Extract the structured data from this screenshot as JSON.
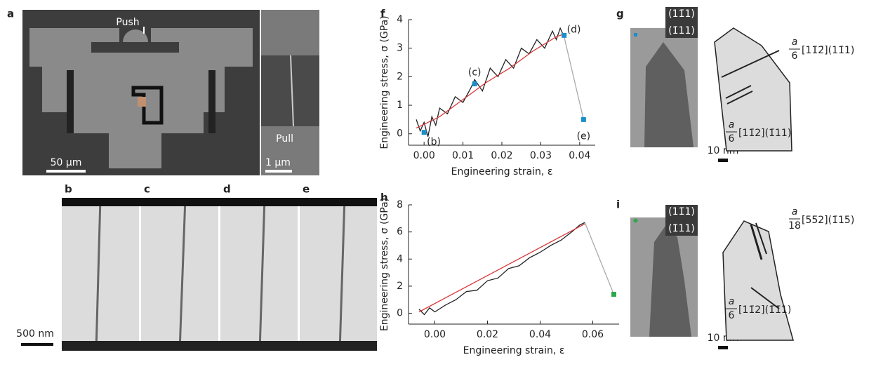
{
  "panel_labels": [
    "a",
    "b",
    "c",
    "d",
    "e",
    "f",
    "g",
    "h",
    "i"
  ],
  "image_texts": {
    "push": "Push",
    "pull": "Pull",
    "scale_a": "50 μm",
    "scale_a2": "1 μm",
    "scale_be": "500 nm",
    "scale_g": "10 nm",
    "scale_i": "10 nm"
  },
  "diffraction": {
    "g": [
      "(11̄1)",
      "(1̄11)"
    ],
    "i": [
      "(11̄1)",
      "(1̄11)"
    ]
  },
  "slip": {
    "g": [
      {
        "num": "a",
        "den": "6",
        "index": "[11̄2̄](11̄1)"
      },
      {
        "num": "a",
        "den": "6",
        "index": "[11̄2](1̄11)"
      }
    ],
    "i": [
      {
        "num": "a",
        "den": "18",
        "index": "[55̄2](1̄15)"
      },
      {
        "num": "a",
        "den": "6",
        "index": "[11̄2](1̄1̄1)"
      }
    ]
  },
  "chart_data": [
    {
      "type": "line",
      "x_label": "Engineering strain, ε",
      "y_label": "Engineering stress, σ (GPa)",
      "xlim": [
        -0.004,
        0.044
      ],
      "ylim": [
        -0.4,
        4
      ],
      "xticks": [
        {
          "value": 0,
          "label": "0.00"
        },
        {
          "value": 0.01,
          "label": "0.01"
        },
        {
          "value": 0.02,
          "label": "0.02"
        },
        {
          "value": 0.03,
          "label": "0.03"
        },
        {
          "value": 0.04,
          "label": "0.04"
        }
      ],
      "yticks": [
        0,
        1,
        2,
        3,
        4
      ],
      "series": [
        {
          "style": "line",
          "color": "#222222",
          "x": [
            -0.002,
            -0.001,
            0,
            0.001,
            0.002,
            0.003,
            0.004,
            0.006,
            0.008,
            0.01,
            0.012,
            0.013,
            0.015,
            0.017,
            0.019,
            0.021,
            0.023,
            0.025,
            0.027,
            0.029,
            0.031,
            0.033,
            0.034,
            0.035,
            0.036
          ],
          "values": [
            0.5,
            0.1,
            0.4,
            -0.1,
            0.6,
            0.3,
            0.9,
            0.7,
            1.3,
            1.1,
            1.6,
            1.9,
            1.5,
            2.3,
            2.0,
            2.6,
            2.3,
            3.0,
            2.8,
            3.3,
            3.0,
            3.6,
            3.3,
            3.7,
            3.4
          ]
        },
        {
          "style": "line",
          "color": "#d9383a",
          "x": [
            -0.002,
            0.004,
            0.01,
            0.016,
            0.022,
            0.028,
            0.034,
            0.036
          ],
          "values": [
            0.2,
            0.6,
            1.2,
            1.8,
            2.3,
            2.9,
            3.4,
            3.5
          ]
        },
        {
          "style": "line",
          "color": "#aaaaaa",
          "x": [
            0.036,
            0.041
          ],
          "values": [
            3.4,
            0.5
          ]
        },
        {
          "style": "marker",
          "color": "#1a8fc9",
          "x": [
            0,
            0.013,
            0.036,
            0.041
          ],
          "values": [
            0.05,
            1.75,
            3.45,
            0.5
          ],
          "labels": [
            "(b)",
            "(c)",
            "(d)",
            "(e)"
          ]
        }
      ]
    },
    {
      "type": "line",
      "x_label": "Engineering strain, ε",
      "y_label": "Engineering stress, σ (GPa)",
      "xlim": [
        -0.01,
        0.07
      ],
      "ylim": [
        -0.8,
        8
      ],
      "xticks": [
        {
          "value": 0,
          "label": "0.00"
        },
        {
          "value": 0.02,
          "label": "0.02"
        },
        {
          "value": 0.04,
          "label": "0.04"
        },
        {
          "value": 0.06,
          "label": "0.06"
        }
      ],
      "yticks": [
        0,
        2,
        4,
        6,
        8
      ],
      "series": [
        {
          "style": "line",
          "color": "#222222",
          "x": [
            -0.006,
            -0.004,
            -0.002,
            0,
            0.004,
            0.008,
            0.012,
            0.016,
            0.02,
            0.024,
            0.028,
            0.032,
            0.036,
            0.04,
            0.044,
            0.048,
            0.052,
            0.055,
            0.057
          ],
          "values": [
            0.3,
            -0.1,
            0.4,
            0.1,
            0.6,
            1.0,
            1.6,
            1.7,
            2.4,
            2.6,
            3.3,
            3.5,
            4.1,
            4.5,
            5.0,
            5.4,
            6.0,
            6.5,
            6.7
          ]
        },
        {
          "style": "line",
          "color": "#d9383a",
          "x": [
            -0.006,
            0.057
          ],
          "values": [
            0.1,
            6.6
          ]
        },
        {
          "style": "line",
          "color": "#aaaaaa",
          "x": [
            0.057,
            0.068
          ],
          "values": [
            6.7,
            1.4
          ]
        },
        {
          "style": "marker",
          "color": "#2aa84a",
          "x": [
            0.068
          ],
          "values": [
            1.4
          ]
        }
      ]
    }
  ]
}
